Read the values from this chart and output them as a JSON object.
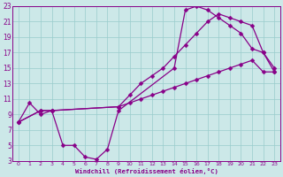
{
  "xlabel": "Windchill (Refroidissement éolien,°C)",
  "bg_color": "#cce8e8",
  "grid_color": "#99cccc",
  "line_color": "#880088",
  "xlim": [
    -0.5,
    23.5
  ],
  "ylim": [
    3,
    23
  ],
  "xticks": [
    0,
    1,
    2,
    3,
    4,
    5,
    6,
    7,
    8,
    9,
    10,
    11,
    12,
    13,
    14,
    15,
    16,
    17,
    18,
    19,
    20,
    21,
    22,
    23
  ],
  "yticks": [
    3,
    5,
    7,
    9,
    11,
    13,
    15,
    17,
    19,
    21,
    23
  ],
  "curve1_x": [
    0,
    1,
    2,
    3,
    4,
    5,
    6,
    7,
    8,
    9,
    14,
    15,
    16,
    17,
    18,
    19,
    20,
    21,
    22,
    23
  ],
  "curve1_y": [
    8.0,
    10.5,
    9.0,
    9.5,
    5.0,
    5.0,
    3.5,
    3.2,
    4.5,
    9.5,
    15.0,
    22.5,
    23.0,
    22.5,
    21.5,
    20.5,
    19.5,
    17.5,
    17.0,
    15.0
  ],
  "curve2_x": [
    0,
    2,
    3,
    9,
    10,
    11,
    12,
    13,
    14,
    15,
    16,
    17,
    18,
    19,
    20,
    21,
    22,
    23
  ],
  "curve2_y": [
    8.0,
    9.5,
    9.5,
    10.0,
    11.5,
    13.0,
    14.0,
    15.0,
    16.5,
    18.0,
    19.5,
    21.0,
    22.0,
    21.5,
    21.0,
    20.5,
    17.0,
    14.5
  ],
  "curve3_x": [
    0,
    2,
    3,
    9,
    10,
    11,
    12,
    13,
    14,
    15,
    16,
    17,
    18,
    19,
    20,
    21,
    22,
    23
  ],
  "curve3_y": [
    8.0,
    9.5,
    9.5,
    10.0,
    10.5,
    11.0,
    11.5,
    12.0,
    12.5,
    13.0,
    13.5,
    14.0,
    14.5,
    15.0,
    15.5,
    16.0,
    14.5,
    14.5
  ]
}
